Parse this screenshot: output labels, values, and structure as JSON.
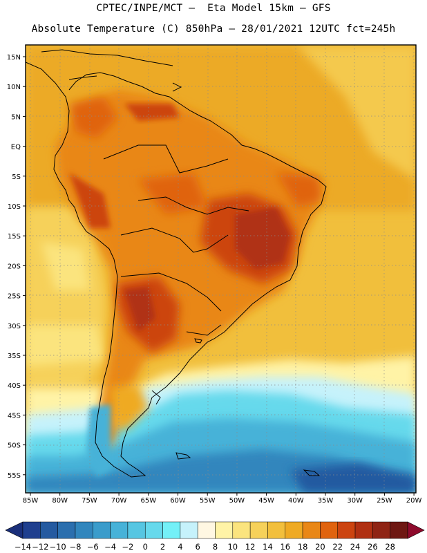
{
  "header": {
    "line1": "CPTEC/INPE/MCT –  Eta Model 15km – GFS",
    "line2": "Absolute Temperature (C) 850hPa – 28/01/2021 12UTC fct=245h"
  },
  "axes": {
    "lat_labels": [
      "15N",
      "10N",
      "5N",
      "EQ",
      "5S",
      "10S",
      "15S",
      "20S",
      "25S",
      "30S",
      "35S",
      "40S",
      "45S",
      "50S",
      "55S"
    ],
    "lon_labels": [
      "85W",
      "80W",
      "75W",
      "70W",
      "65W",
      "60W",
      "55W",
      "50W",
      "45W",
      "40W",
      "35W",
      "30W",
      "25W",
      "20W"
    ]
  },
  "colorbar": {
    "labels": [
      "-14",
      "-12",
      "-10",
      "-8",
      "-6",
      "-4",
      "-2",
      "0",
      "2",
      "4",
      "6",
      "8",
      "10",
      "12",
      "14",
      "16",
      "18",
      "20",
      "22",
      "24",
      "26",
      "28"
    ],
    "under_color": "#1a2f7a",
    "over_color": "#8e0a2c",
    "colors": [
      "#1f3f8f",
      "#245aa0",
      "#2b6fae",
      "#3186bd",
      "#3a9ccb",
      "#47b2d8",
      "#56c6e2",
      "#66d9ec",
      "#73f0f7",
      "#c6f2fb",
      "#fff7e2",
      "#fff3a6",
      "#fbe47e",
      "#f6d15a",
      "#f2bf3c",
      "#efaa23",
      "#e98716",
      "#e0630e",
      "#cc4410",
      "#b03012",
      "#8f2414",
      "#6e1712"
    ]
  }
}
